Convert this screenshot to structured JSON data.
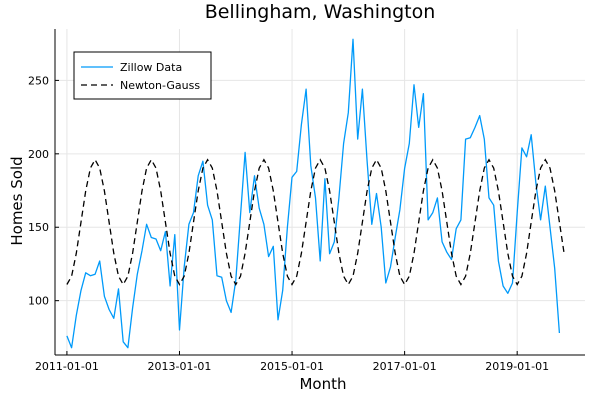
{
  "chart_data": {
    "type": "line",
    "title": "Bellingham, Washington",
    "xlabel": "Month",
    "ylabel": "Homes Sold",
    "x_ticks": [
      "2011-01-01",
      "2013-01-01",
      "2015-01-01",
      "2017-01-01",
      "2019-01-01"
    ],
    "x_range": [
      "2010-10-15",
      "2020-03-15"
    ],
    "y_ticks": [
      100,
      150,
      200,
      250
    ],
    "ylim": [
      63,
      285
    ],
    "grid": true,
    "legend_position": "top-left",
    "series": [
      {
        "name": "Zillow Data",
        "color": "#009AFA",
        "style": "solid",
        "start_month": "2011-01",
        "values": [
          76,
          68,
          90,
          107,
          119,
          117,
          118,
          127,
          103,
          94,
          88,
          108,
          72,
          68,
          95,
          118,
          134,
          152,
          143,
          142,
          134,
          147,
          110,
          145,
          80,
          123,
          152,
          160,
          185,
          195,
          165,
          155,
          117,
          116,
          100,
          92,
          114,
          158,
          201,
          160,
          185,
          163,
          152,
          130,
          137,
          87,
          107,
          150,
          184,
          188,
          220,
          244,
          192,
          170,
          127,
          183,
          132,
          140,
          170,
          207,
          228,
          278,
          210,
          244,
          195,
          152,
          173,
          150,
          112,
          123,
          143,
          162,
          190,
          207,
          247,
          218,
          241,
          155,
          160,
          170,
          140,
          133,
          128,
          149,
          155,
          210,
          211,
          218,
          226,
          210,
          170,
          165,
          127,
          110,
          105,
          112,
          160,
          204,
          198,
          213,
          180,
          155,
          178,
          150,
          122,
          78
        ]
      },
      {
        "name": "Newton-Gauss",
        "color": "#000000",
        "style": "dashed",
        "start_month": "2011-01",
        "period_months": 12,
        "mean": 153.5,
        "amplitude": 42.5,
        "peak_month": "July",
        "length": 107
      }
    ]
  }
}
